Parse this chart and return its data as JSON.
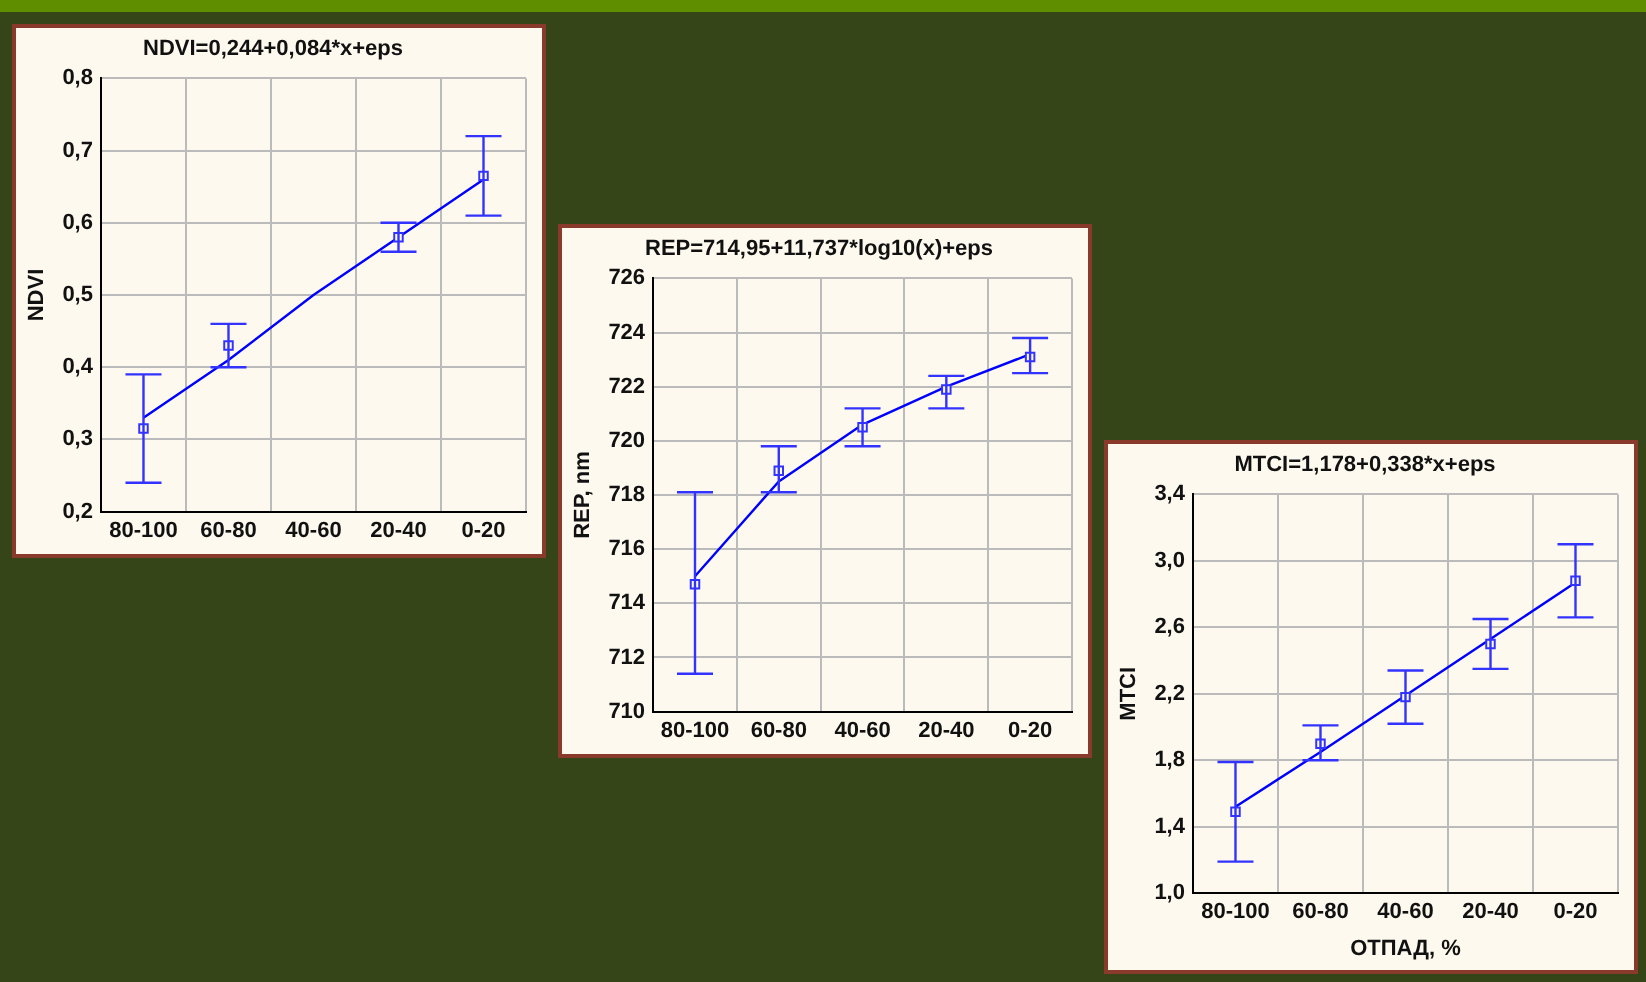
{
  "chart_data": [
    {
      "type": "scatter",
      "title": "NDVI=0,244+0,084*x+eps",
      "ylabel": "NDVI",
      "categories": [
        "80-100",
        "60-80",
        "40-60",
        "20-40",
        "0-20"
      ],
      "grid": true,
      "legend": false,
      "ylim": [
        0.2,
        0.8
      ],
      "yticks": [
        {
          "value": 0.2,
          "label": "0,2"
        },
        {
          "value": 0.3,
          "label": "0,3"
        },
        {
          "value": 0.4,
          "label": "0,4"
        },
        {
          "value": 0.5,
          "label": "0,5"
        },
        {
          "value": 0.6,
          "label": "0,6"
        },
        {
          "value": 0.7,
          "label": "0,7"
        },
        {
          "value": 0.8,
          "label": "0,8"
        }
      ],
      "series": [
        {
          "marker": "square",
          "color": "#3333ff",
          "values": [
            0.315,
            0.43,
            null,
            0.58,
            0.665
          ],
          "errors": [
            [
              0.24,
              0.39
            ],
            [
              0.4,
              0.46
            ],
            null,
            [
              0.56,
              0.6
            ],
            [
              0.61,
              0.72
            ]
          ]
        },
        {
          "type": "line",
          "marker": "none",
          "color": "#0000ff",
          "values": [
            0.33,
            0.41,
            0.5,
            0.58,
            0.66
          ]
        }
      ]
    },
    {
      "type": "scatter",
      "title": "REP=714,95+11,737*log10(x)+eps",
      "ylabel": "REP, nm",
      "categories": [
        "80-100",
        "60-80",
        "40-60",
        "20-40",
        "0-20"
      ],
      "grid": true,
      "legend": false,
      "ylim": [
        710,
        726
      ],
      "yticks": [
        710,
        712,
        714,
        716,
        718,
        720,
        722,
        724,
        726
      ],
      "series": [
        {
          "marker": "square",
          "color": "#3333ff",
          "values": [
            714.7,
            718.9,
            720.5,
            721.9,
            723.1
          ],
          "errors": [
            [
              711.4,
              718.1
            ],
            [
              718.1,
              719.8
            ],
            [
              719.8,
              721.2
            ],
            [
              721.2,
              722.4
            ],
            [
              722.5,
              723.8
            ]
          ]
        },
        {
          "type": "line",
          "marker": "none",
          "color": "#0000ff",
          "values": [
            715.0,
            718.5,
            720.6,
            722.0,
            723.2
          ]
        }
      ]
    },
    {
      "type": "scatter",
      "title": "MTCI=1,178+0,338*x+eps",
      "xlabel": "ОТПАД, %",
      "ylabel": "MTCI",
      "categories": [
        "80-100",
        "60-80",
        "40-60",
        "20-40",
        "0-20"
      ],
      "grid": true,
      "legend": false,
      "ylim": [
        1.0,
        3.4
      ],
      "yticks": [
        {
          "value": 1.0,
          "label": "1,0"
        },
        {
          "value": 1.4,
          "label": "1,4"
        },
        {
          "value": 1.8,
          "label": "1,8"
        },
        {
          "value": 2.2,
          "label": "2,2"
        },
        {
          "value": 2.6,
          "label": "2,6"
        },
        {
          "value": 3.0,
          "label": "3,0"
        },
        {
          "value": 3.4,
          "label": "3,4"
        }
      ],
      "series": [
        {
          "marker": "square",
          "color": "#3333ff",
          "values": [
            1.49,
            1.9,
            2.18,
            2.5,
            2.88
          ],
          "errors": [
            [
              1.19,
              1.79
            ],
            [
              1.8,
              2.01
            ],
            [
              2.02,
              2.34
            ],
            [
              2.35,
              2.65
            ],
            [
              2.66,
              3.1
            ]
          ]
        },
        {
          "type": "line",
          "marker": "none",
          "color": "#0000ff",
          "values": [
            1.52,
            1.85,
            2.19,
            2.53,
            2.87
          ]
        }
      ]
    }
  ]
}
